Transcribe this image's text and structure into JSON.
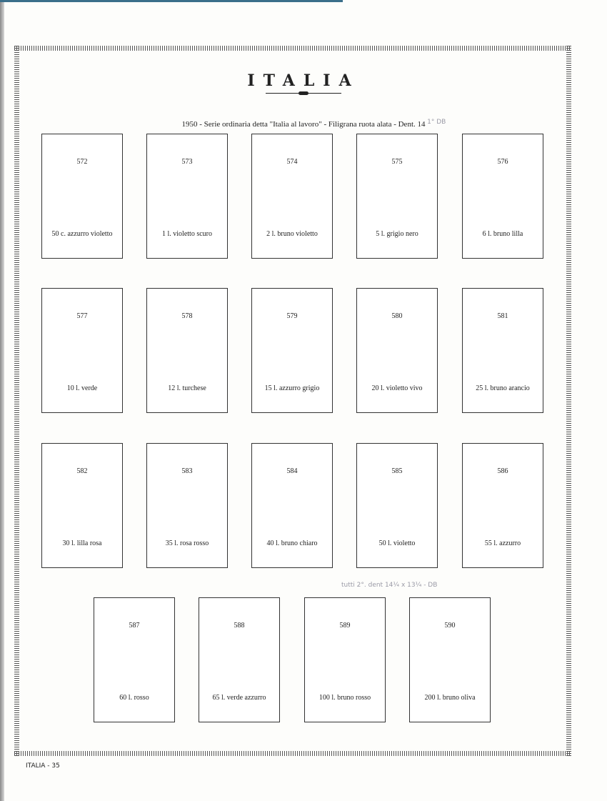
{
  "page": {
    "title": "ITALIA",
    "subtitle": "1950 - Serie ordinaria detta \"Italia al lavoro\" - Filigrana ruota alata - Dent. 14",
    "footer": "ITALIA - 35"
  },
  "handwritten": {
    "note1": "- 1° DB",
    "note2": "tutti 2°. dent 14¼ x 13¼ - DB"
  },
  "stamps": [
    {
      "num": "572",
      "label": "50 c. azzurro violetto"
    },
    {
      "num": "573",
      "label": "1 l. violetto scuro"
    },
    {
      "num": "574",
      "label": "2 l. bruno violetto"
    },
    {
      "num": "575",
      "label": "5 l. grigio nero"
    },
    {
      "num": "576",
      "label": "6 l. bruno lilla"
    },
    {
      "num": "577",
      "label": "10 l. verde"
    },
    {
      "num": "578",
      "label": "12 l. turchese"
    },
    {
      "num": "579",
      "label": "15 l. azzurro grigio"
    },
    {
      "num": "580",
      "label": "20 l. violetto vivo"
    },
    {
      "num": "581",
      "label": "25 l. bruno arancio"
    },
    {
      "num": "582",
      "label": "30 l. lilla rosa"
    },
    {
      "num": "583",
      "label": "35 l. rosa rosso"
    },
    {
      "num": "584",
      "label": "40 l. bruno chiaro"
    },
    {
      "num": "585",
      "label": "50 l. violetto"
    },
    {
      "num": "586",
      "label": "55 l. azzurro"
    },
    {
      "num": "587",
      "label": "60 l. rosso"
    },
    {
      "num": "588",
      "label": "65 l. verde azzurro"
    },
    {
      "num": "589",
      "label": "100 l. bruno rosso"
    },
    {
      "num": "590",
      "label": "200 l. bruno oliva"
    }
  ]
}
